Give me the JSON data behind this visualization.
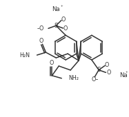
{
  "bg": "#ffffff",
  "lc": "#333333",
  "tc": "#333333",
  "figsize": [
    1.87,
    1.7
  ],
  "dpi": 100,
  "lw": 1.1,
  "R": 18,
  "xlim": [
    0,
    187
  ],
  "ylim": [
    0,
    170
  ]
}
